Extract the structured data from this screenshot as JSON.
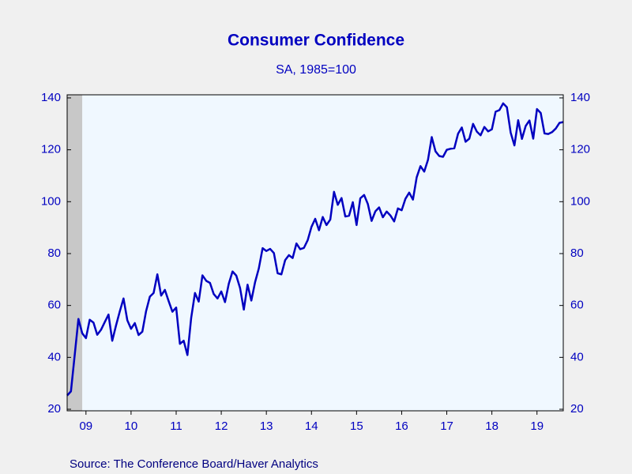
{
  "chart_data": {
    "type": "line",
    "title": "Consumer Confidence",
    "subtitle": "SA, 1985=100",
    "source": "Source:  The Conference Board/Haver Analytics",
    "x": [
      2009.083,
      2009.167,
      2009.25,
      2009.333,
      2009.417,
      2009.5,
      2009.583,
      2009.667,
      2009.75,
      2009.833,
      2009.917,
      2010,
      2010.083,
      2010.167,
      2010.25,
      2010.333,
      2010.417,
      2010.5,
      2010.583,
      2010.667,
      2010.75,
      2010.833,
      2010.917,
      2011,
      2011.083,
      2011.167,
      2011.25,
      2011.333,
      2011.417,
      2011.5,
      2011.583,
      2011.667,
      2011.75,
      2011.833,
      2011.917,
      2012,
      2012.083,
      2012.167,
      2012.25,
      2012.333,
      2012.417,
      2012.5,
      2012.583,
      2012.667,
      2012.75,
      2012.833,
      2012.917,
      2013,
      2013.083,
      2013.167,
      2013.25,
      2013.333,
      2013.417,
      2013.5,
      2013.583,
      2013.667,
      2013.75,
      2013.833,
      2013.917,
      2014,
      2014.083,
      2014.167,
      2014.25,
      2014.333,
      2014.417,
      2014.5,
      2014.583,
      2014.667,
      2014.75,
      2014.833,
      2014.917,
      2015,
      2015.083,
      2015.167,
      2015.25,
      2015.333,
      2015.417,
      2015.5,
      2015.583,
      2015.667,
      2015.75,
      2015.833,
      2015.917,
      2016,
      2016.083,
      2016.167,
      2016.25,
      2016.333,
      2016.417,
      2016.5,
      2016.583,
      2016.667,
      2016.75,
      2016.833,
      2016.917,
      2017,
      2017.083,
      2017.167,
      2017.25,
      2017.333,
      2017.417,
      2017.5,
      2017.583,
      2017.667,
      2017.75,
      2017.833,
      2017.917,
      2018,
      2018.083,
      2018.167,
      2018.25,
      2018.333,
      2018.417,
      2018.5,
      2018.583,
      2018.667,
      2018.75,
      2018.833,
      2018.917,
      2019,
      2019.083,
      2019.167,
      2019.25,
      2019.333,
      2019.417,
      2019.5,
      2019.583,
      2019.667,
      2019.75,
      2019.833,
      2019.917,
      2020,
      2020.083
    ],
    "series": [
      {
        "name": "Consumer Confidence",
        "color": "#0000c0",
        "values": [
          25.3,
          26.9,
          40.8,
          54.8,
          49.3,
          47.4,
          54.5,
          53.4,
          48.7,
          50.6,
          53.6,
          56.5,
          46.4,
          52.3,
          57.7,
          62.7,
          54.3,
          51.0,
          53.2,
          48.6,
          49.9,
          57.8,
          63.4,
          64.8,
          72.0,
          63.8,
          66.0,
          61.7,
          57.6,
          59.2,
          45.2,
          46.4,
          40.9,
          55.2,
          64.8,
          61.5,
          71.6,
          69.5,
          68.7,
          64.4,
          62.7,
          65.4,
          61.3,
          68.4,
          73.1,
          71.5,
          66.7,
          58.4,
          68.0,
          61.9,
          69.0,
          74.3,
          82.1,
          81.0,
          81.8,
          80.2,
          72.4,
          72.0,
          77.5,
          79.4,
          78.3,
          83.9,
          81.7,
          82.2,
          85.2,
          90.3,
          93.4,
          89.0,
          94.1,
          91.0,
          93.1,
          103.8,
          98.8,
          101.4,
          94.3,
          94.6,
          99.8,
          91.0,
          101.3,
          102.6,
          99.1,
          92.6,
          96.3,
          97.8,
          94.0,
          96.2,
          94.7,
          92.4,
          97.4,
          96.7,
          101.1,
          103.5,
          100.8,
          109.4,
          113.7,
          111.6,
          116.1,
          124.9,
          119.4,
          117.6,
          117.3,
          120.0,
          120.4,
          120.6,
          126.2,
          128.6,
          123.1,
          124.3,
          130.0,
          127.0,
          125.6,
          128.8,
          127.1,
          127.9,
          134.7,
          135.3,
          137.9,
          136.4,
          126.6,
          121.7,
          131.4,
          124.2,
          129.2,
          131.3,
          124.3,
          135.7,
          134.2,
          126.3,
          126.1,
          126.8,
          128.2,
          130.4,
          130.7
        ]
      }
    ],
    "shading": {
      "x0": 2009.083,
      "x1": 2009.417,
      "color": "#c8c8c8"
    },
    "xlim": [
      2009.083,
      2020.083
    ],
    "xticks": [
      {
        "value": 2009.5,
        "label": "09"
      },
      {
        "value": 2010.5,
        "label": "10"
      },
      {
        "value": 2011.5,
        "label": "11"
      },
      {
        "value": 2012.5,
        "label": "12"
      },
      {
        "value": 2013.5,
        "label": "13"
      },
      {
        "value": 2014.5,
        "label": "14"
      },
      {
        "value": 2015.5,
        "label": "15"
      },
      {
        "value": 2016.5,
        "label": "16"
      },
      {
        "value": 2017.5,
        "label": "17"
      },
      {
        "value": 2018.5,
        "label": "18"
      },
      {
        "value": 2019.5,
        "label": "19"
      }
    ],
    "ylim": [
      19.4,
      141.2
    ],
    "yticks": [
      20,
      40,
      60,
      80,
      100,
      120,
      140
    ],
    "y2lim": [
      19.4,
      141.2
    ],
    "y2ticks": [
      20,
      40,
      60,
      80,
      100,
      120,
      140
    ]
  }
}
